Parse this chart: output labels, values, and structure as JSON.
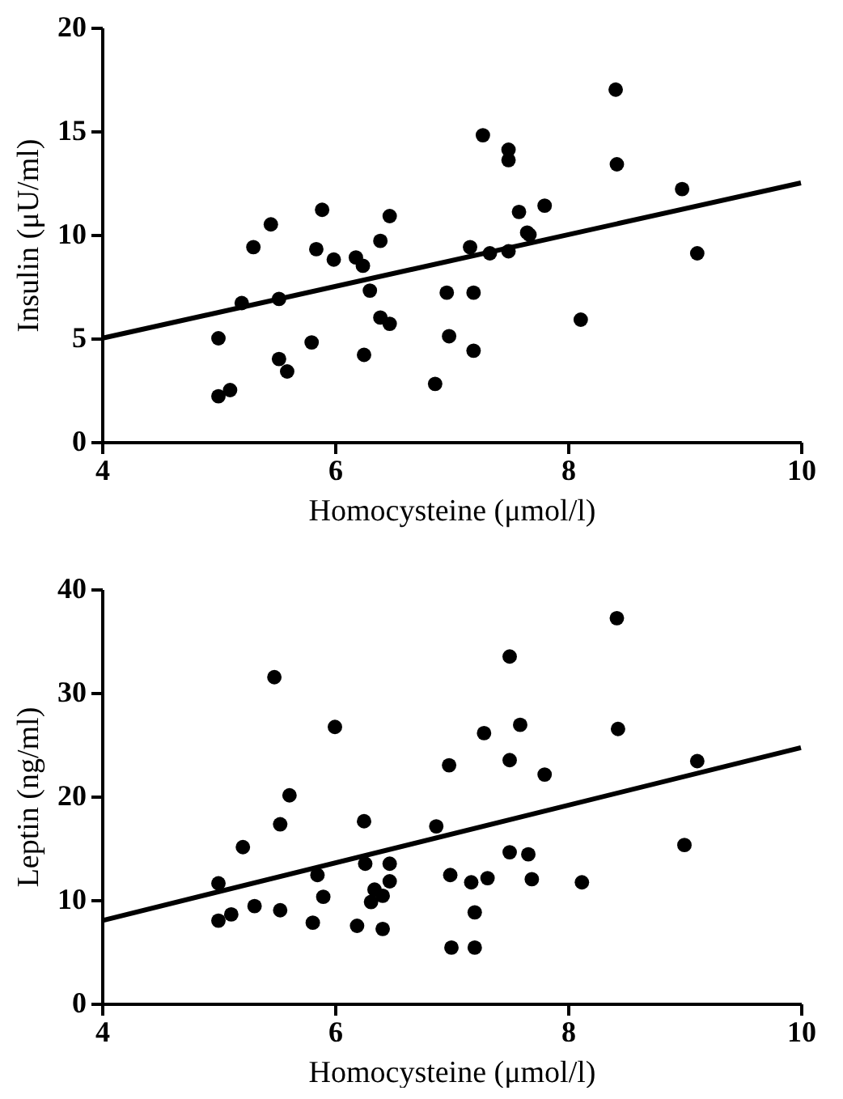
{
  "chart_data": [
    {
      "type": "scatter",
      "xlabel": "Homocysteine (μmol/l)",
      "ylabel": "Insulin (μU/ml)",
      "xlim": [
        4,
        10
      ],
      "xticks": [
        4,
        6,
        8,
        10
      ],
      "ylim": [
        0,
        20
      ],
      "yticks": [
        0,
        5,
        10,
        15,
        20
      ],
      "series": [
        {
          "type": "scatter",
          "marker": "circle",
          "color": "#000000",
          "x": [
            5.0,
            5.0,
            5.1,
            5.2,
            5.3,
            5.45,
            5.52,
            5.52,
            5.59,
            5.8,
            5.84,
            5.89,
            5.99,
            6.18,
            6.24,
            6.25,
            6.3,
            6.39,
            6.39,
            6.47,
            6.47,
            6.86,
            6.96,
            6.98,
            7.19,
            7.19,
            7.16,
            7.27,
            7.33,
            7.49,
            7.49,
            7.49,
            7.58,
            7.65,
            7.67,
            7.8,
            8.11,
            8.41,
            8.42,
            8.98,
            9.11
          ],
          "values": [
            5.0,
            2.2,
            2.5,
            6.7,
            9.4,
            10.5,
            6.9,
            4.0,
            3.4,
            4.8,
            9.3,
            11.2,
            8.8,
            8.9,
            8.5,
            4.2,
            7.3,
            9.7,
            6.0,
            10.9,
            5.7,
            2.8,
            7.2,
            5.1,
            7.2,
            4.4,
            9.4,
            14.8,
            9.1,
            14.1,
            13.6,
            9.2,
            11.1,
            10.1,
            10.0,
            11.4,
            5.9,
            17.0,
            13.4,
            12.2,
            9.1
          ]
        },
        {
          "type": "line",
          "color": "#000000",
          "x": [
            4,
            10
          ],
          "values": [
            5.0,
            12.5
          ]
        }
      ]
    },
    {
      "type": "scatter",
      "xlabel": "Homocysteine (μmol/l)",
      "ylabel": "Leptin (ng/ml)",
      "xlim": [
        4,
        10
      ],
      "xticks": [
        4,
        6,
        8,
        10
      ],
      "ylim": [
        0,
        40
      ],
      "yticks": [
        0,
        10,
        20,
        30,
        40
      ],
      "series": [
        {
          "type": "scatter",
          "marker": "circle",
          "color": "#000000",
          "x": [
            5.0,
            5.0,
            5.11,
            5.21,
            5.31,
            5.48,
            5.53,
            5.53,
            5.61,
            5.81,
            5.85,
            5.9,
            6.0,
            6.19,
            6.25,
            6.26,
            6.31,
            6.34,
            6.41,
            6.41,
            6.47,
            6.47,
            6.87,
            6.98,
            6.99,
            7.0,
            7.17,
            7.2,
            7.2,
            7.28,
            7.31,
            7.5,
            7.5,
            7.5,
            7.59,
            7.66,
            7.69,
            7.8,
            8.12,
            8.42,
            8.43,
            9.0,
            9.11
          ],
          "values": [
            11.6,
            8.0,
            8.6,
            15.1,
            9.4,
            31.5,
            17.3,
            9.0,
            20.1,
            7.8,
            12.4,
            10.3,
            26.7,
            7.5,
            17.6,
            13.5,
            9.8,
            11.0,
            10.4,
            7.2,
            13.5,
            11.8,
            17.1,
            23.0,
            12.4,
            5.4,
            11.7,
            8.8,
            5.4,
            26.1,
            12.1,
            33.5,
            23.5,
            14.6,
            26.9,
            14.4,
            12.0,
            22.1,
            11.7,
            37.2,
            26.5,
            15.3,
            23.4
          ]
        },
        {
          "type": "line",
          "color": "#000000",
          "x": [
            4,
            10
          ],
          "values": [
            8.0,
            24.7
          ]
        }
      ]
    }
  ]
}
